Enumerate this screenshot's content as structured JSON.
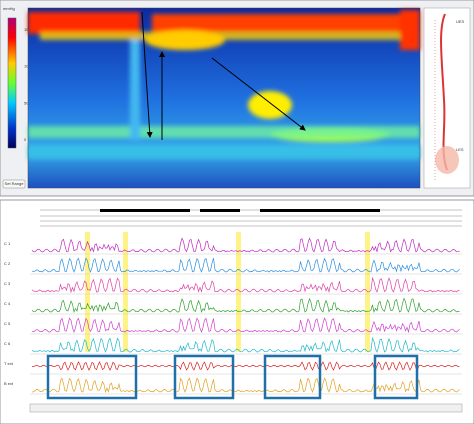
{
  "colorbar": {
    "unit": "mmHg",
    "ticks": [
      "150",
      "100",
      "50",
      "0"
    ]
  },
  "button": "Set Range",
  "side_panel": {
    "labels": [
      "UES",
      "LES"
    ]
  },
  "channels": {
    "labels": [
      "C 1",
      "C 2",
      "C 3",
      "C 4",
      "C 5",
      "C 6",
      "T ext",
      "B ext"
    ]
  }
}
